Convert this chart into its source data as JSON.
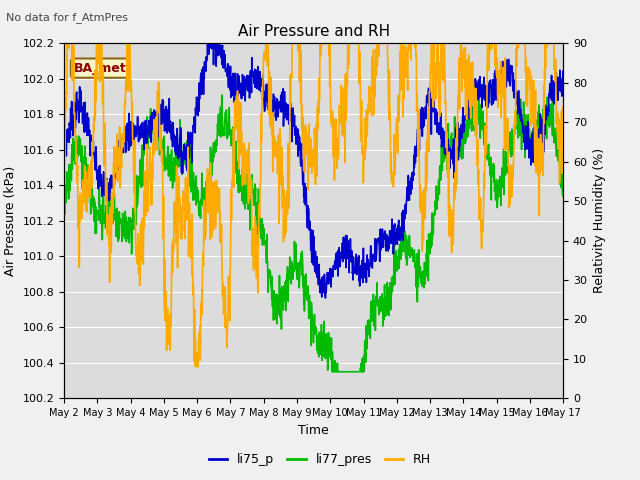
{
  "title": "Air Pressure and RH",
  "top_left_text": "No data for f_AtmPres",
  "station_label": "BA_met",
  "xlabel": "Time",
  "ylabel_left": "Air Pressure (kPa)",
  "ylabel_right": "Relativity Humidity (%)",
  "legend": [
    "li75_p",
    "li77_pres",
    "RH"
  ],
  "ylim_left": [
    100.2,
    102.2
  ],
  "ylim_right": [
    0,
    90
  ],
  "yticks_left": [
    100.2,
    100.4,
    100.6,
    100.8,
    101.0,
    101.2,
    101.4,
    101.6,
    101.8,
    102.0,
    102.2
  ],
  "yticks_right": [
    0,
    10,
    20,
    30,
    40,
    50,
    60,
    70,
    80,
    90
  ],
  "plot_bg": "#dcdcdc",
  "fig_bg": "#f0f0f0",
  "grid_color": "#ffffff",
  "line_blue": "#0000cc",
  "line_green": "#00bb00",
  "line_orange": "#ffaa00",
  "n_points": 1500,
  "seed": 7
}
